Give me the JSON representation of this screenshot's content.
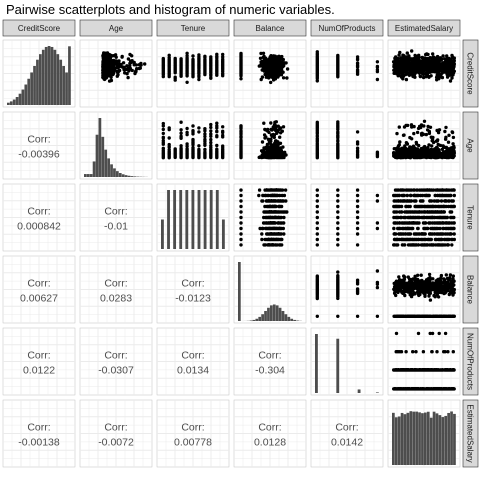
{
  "page": {
    "title": "Pairwise scatterplots and histogram of numeric variables."
  },
  "chart_data": {
    "type": "scatter-matrix",
    "variables": [
      "CreditScore",
      "Age",
      "Tenure",
      "Balance",
      "NumOfProducts",
      "EstimatedSalary"
    ],
    "corr_label": "Corr:",
    "correlations": [
      {
        "row": "Age",
        "col": "CreditScore",
        "value": "-0.00396"
      },
      {
        "row": "Tenure",
        "col": "CreditScore",
        "value": "0.000842"
      },
      {
        "row": "Tenure",
        "col": "Age",
        "value": "-0.01"
      },
      {
        "row": "Balance",
        "col": "CreditScore",
        "value": "0.00627"
      },
      {
        "row": "Balance",
        "col": "Age",
        "value": "0.0283"
      },
      {
        "row": "Balance",
        "col": "Tenure",
        "value": "-0.0123"
      },
      {
        "row": "NumOfProducts",
        "col": "CreditScore",
        "value": "0.0122"
      },
      {
        "row": "NumOfProducts",
        "col": "Age",
        "value": "-0.0307"
      },
      {
        "row": "NumOfProducts",
        "col": "Tenure",
        "value": "0.0134"
      },
      {
        "row": "NumOfProducts",
        "col": "Balance",
        "value": "-0.304"
      },
      {
        "row": "EstimatedSalary",
        "col": "CreditScore",
        "value": "-0.00138"
      },
      {
        "row": "EstimatedSalary",
        "col": "Age",
        "value": "-0.0072"
      },
      {
        "row": "EstimatedSalary",
        "col": "Tenure",
        "value": "0.00778"
      },
      {
        "row": "EstimatedSalary",
        "col": "Balance",
        "value": "0.0128"
      },
      {
        "row": "EstimatedSalary",
        "col": "NumOfProducts",
        "value": "0.0142"
      }
    ],
    "diagonal": "histogram",
    "upper": "scatter",
    "grid": true,
    "colors": {
      "panel_bg": "#ffffff",
      "grid": "#ebebeb",
      "strip_bg": "#d9d9d9",
      "strip_border": "#333333",
      "marks": "#000000",
      "bars": "#4d4d4d",
      "corr_text": "#4d4d4d"
    }
  }
}
